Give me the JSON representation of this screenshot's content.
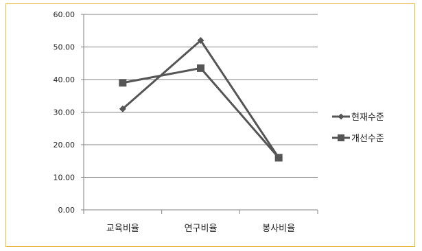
{
  "chart_data": {
    "type": "line",
    "categories": [
      "교육비율",
      "연구비율",
      "봉사비율"
    ],
    "series": [
      {
        "name": "현재수준",
        "values": [
          31.0,
          52.0,
          16.0
        ],
        "marker": "diamond",
        "color": "#555555"
      },
      {
        "name": "개선수준",
        "values": [
          39.0,
          43.5,
          16.0
        ],
        "marker": "square",
        "color": "#555555"
      }
    ],
    "yticks": [
      "0.00",
      "10.00",
      "20.00",
      "30.00",
      "40.00",
      "50.00",
      "60.00"
    ],
    "ylim": [
      0,
      60
    ],
    "grid": true,
    "legend": "right",
    "border_color": "#e8b43a",
    "gridline_color": "#808080"
  }
}
